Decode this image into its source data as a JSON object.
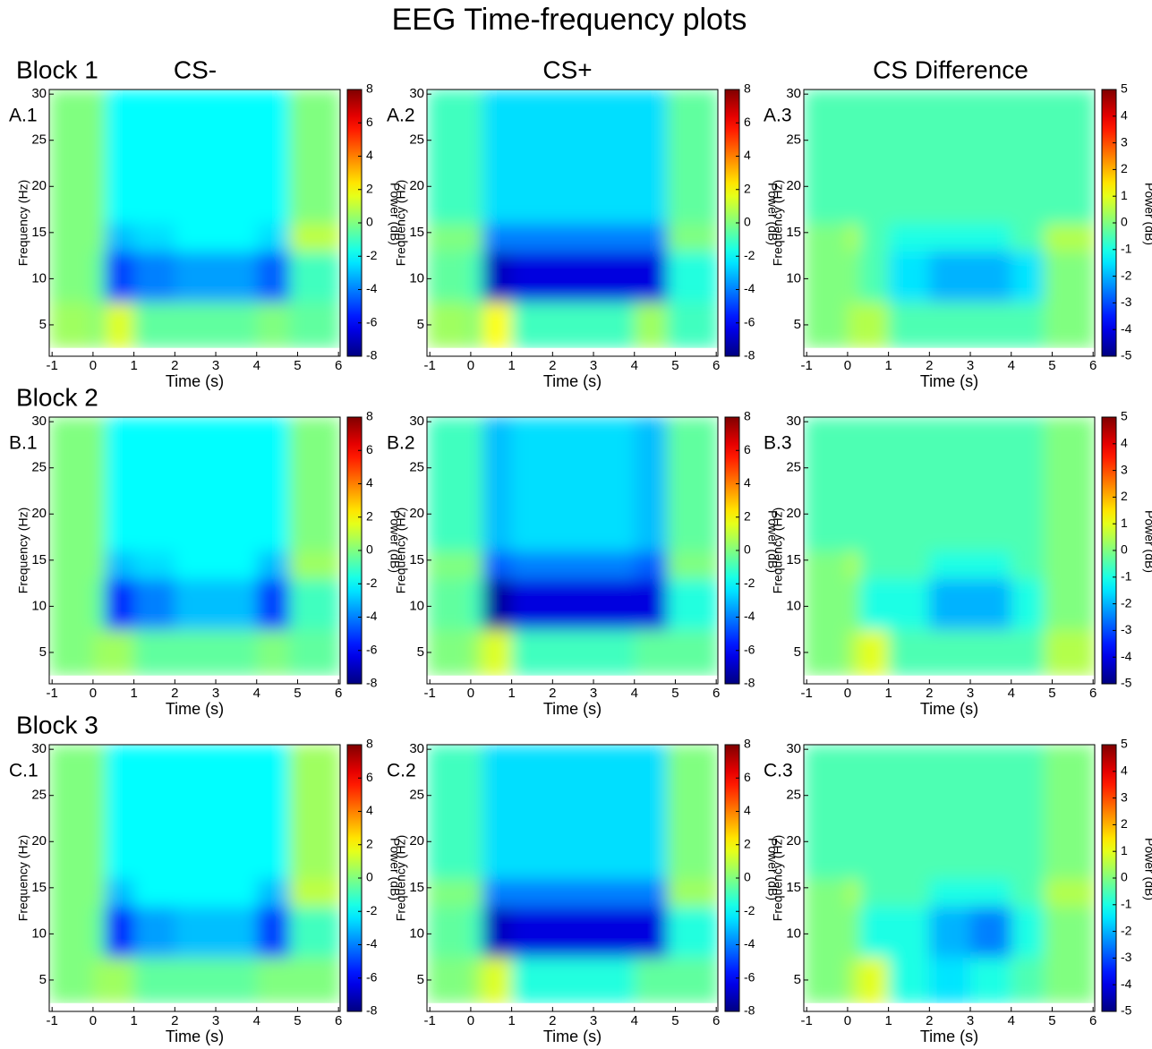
{
  "figure": {
    "title": "EEG Time-frequency plots",
    "row_titles": [
      "Block 1",
      "Block 2",
      "Block 3"
    ],
    "column_titles": [
      "CS-",
      "CS+",
      "CS Difference"
    ]
  },
  "chart_data": [
    {
      "type": "heatmap",
      "label": "A.1",
      "x_label": "Time (s)",
      "y_label": "Frequency (Hz)",
      "colorbar_label": "Power (dB)",
      "colormap": "jet",
      "xlim": [
        -1.07,
        6.04
      ],
      "xticks": [
        -1,
        0,
        1,
        2,
        3,
        4,
        5,
        6
      ],
      "ylim": [
        1.6,
        30.5
      ],
      "yticks": [
        5,
        10,
        15,
        20,
        25,
        30
      ],
      "clim": [
        -8,
        8
      ],
      "cticks": [
        -8,
        -6,
        -4,
        -2,
        0,
        2,
        4,
        6,
        8
      ],
      "x_edges": [
        -1.07,
        0,
        0.3,
        1,
        2,
        3,
        4,
        4.8,
        6.04
      ],
      "y_edges": [
        2.5,
        7.5,
        13,
        16,
        30.5
      ],
      "z": [
        [
          0.5,
          0,
          1.5,
          -0.5,
          -0.5,
          -0.5,
          0,
          -0.5
        ],
        [
          0,
          -0.5,
          -5,
          -4,
          -3.5,
          -3.5,
          -4.5,
          -1
        ],
        [
          0,
          0,
          -3,
          -2.5,
          -2,
          -2,
          -2.5,
          1
        ],
        [
          0,
          0,
          -2,
          -2,
          -2,
          -2,
          -2,
          0
        ]
      ]
    },
    {
      "type": "heatmap",
      "label": "A.2",
      "x_label": "Time (s)",
      "y_label": "Frequency (Hz)",
      "colorbar_label": "Power (dB)",
      "colormap": "jet",
      "xlim": [
        -1.07,
        6.04
      ],
      "xticks": [
        -1,
        0,
        1,
        2,
        3,
        4,
        5,
        6
      ],
      "ylim": [
        1.6,
        30.5
      ],
      "yticks": [
        5,
        10,
        15,
        20,
        25,
        30
      ],
      "clim": [
        -8,
        8
      ],
      "cticks": [
        -8,
        -6,
        -4,
        -2,
        0,
        2,
        4,
        6,
        8
      ],
      "x_edges": [
        -1.07,
        0,
        0.3,
        1,
        2,
        3,
        4,
        4.8,
        6.04
      ],
      "y_edges": [
        2.5,
        7.5,
        13,
        16,
        30.5
      ],
      "z": [
        [
          0.5,
          0,
          2,
          -1,
          -1,
          -1,
          0.5,
          -1
        ],
        [
          -0.5,
          -1,
          -7,
          -6.5,
          -6.5,
          -6.5,
          -6.5,
          -1.5
        ],
        [
          0,
          0,
          -4,
          -4,
          -4,
          -4,
          -4,
          0
        ],
        [
          -1,
          -1,
          -2.5,
          -2.5,
          -2.5,
          -2.5,
          -2.5,
          -0.5
        ]
      ]
    },
    {
      "type": "heatmap",
      "label": "A.3",
      "x_label": "Time (s)",
      "y_label": "Frequency (Hz)",
      "colorbar_label": "Power (dB)",
      "colormap": "jet",
      "xlim": [
        -1.07,
        6.04
      ],
      "xticks": [
        -1,
        0,
        1,
        2,
        3,
        4,
        5,
        6
      ],
      "ylim": [
        1.6,
        30.5
      ],
      "yticks": [
        5,
        10,
        15,
        20,
        25,
        30
      ],
      "clim": [
        -5,
        5
      ],
      "cticks": [
        -5,
        -4,
        -3,
        -2,
        -1,
        0,
        1,
        2,
        3,
        4,
        5
      ],
      "x_edges": [
        -1.07,
        0,
        0.3,
        1,
        2,
        3,
        4,
        4.8,
        6.04
      ],
      "y_edges": [
        2.5,
        7.5,
        13,
        16,
        30.5
      ],
      "z": [
        [
          0,
          0.5,
          0.5,
          -0.5,
          -0.5,
          -0.5,
          -0.5,
          0
        ],
        [
          0,
          0,
          -0.5,
          -1.5,
          -2,
          -2,
          -1.5,
          0
        ],
        [
          0,
          0.5,
          -0.5,
          -1,
          -1,
          -1,
          -0.5,
          0.5
        ],
        [
          -0.5,
          -0.5,
          -0.5,
          -0.5,
          -0.5,
          -0.5,
          -0.5,
          -0.5
        ]
      ]
    },
    {
      "type": "heatmap",
      "label": "B.1",
      "x_label": "Time (s)",
      "y_label": "Frequency (Hz)",
      "colorbar_label": "Power (dB)",
      "colormap": "jet",
      "xlim": [
        -1.07,
        6.04
      ],
      "xticks": [
        -1,
        0,
        1,
        2,
        3,
        4,
        5,
        6
      ],
      "ylim": [
        1.6,
        30.5
      ],
      "yticks": [
        5,
        10,
        15,
        20,
        25,
        30
      ],
      "clim": [
        -8,
        8
      ],
      "cticks": [
        -8,
        -6,
        -4,
        -2,
        0,
        2,
        4,
        6,
        8
      ],
      "x_edges": [
        -1.07,
        0,
        0.3,
        1,
        2,
        3,
        4,
        4.8,
        6.04
      ],
      "y_edges": [
        2.5,
        7.5,
        13,
        16,
        30.5
      ],
      "z": [
        [
          0,
          0.5,
          0.5,
          -0.5,
          -0.5,
          -0.5,
          0,
          -0.5
        ],
        [
          0,
          -0.5,
          -5.5,
          -4,
          -3,
          -3,
          -5,
          -1
        ],
        [
          0,
          0,
          -3,
          -2.5,
          -2,
          -2,
          -3,
          0.5
        ],
        [
          0,
          0,
          -2,
          -2,
          -2,
          -2,
          -2,
          0
        ]
      ]
    },
    {
      "type": "heatmap",
      "label": "B.2",
      "x_label": "Time (s)",
      "y_label": "Frequency (Hz)",
      "colorbar_label": "Power (dB)",
      "colormap": "jet",
      "xlim": [
        -1.07,
        6.04
      ],
      "xticks": [
        -1,
        0,
        1,
        2,
        3,
        4,
        5,
        6
      ],
      "ylim": [
        1.6,
        30.5
      ],
      "yticks": [
        5,
        10,
        15,
        20,
        25,
        30
      ],
      "clim": [
        -8,
        8
      ],
      "cticks": [
        -8,
        -6,
        -4,
        -2,
        0,
        2,
        4,
        6,
        8
      ],
      "x_edges": [
        -1.07,
        0,
        0.3,
        1,
        2,
        3,
        4,
        4.8,
        6.04
      ],
      "y_edges": [
        2.5,
        7.5,
        13,
        16,
        30.5
      ],
      "z": [
        [
          0,
          0.5,
          1.5,
          -1,
          -1,
          -1,
          -0.5,
          -0.5
        ],
        [
          -0.5,
          -1,
          -7.5,
          -6.5,
          -6.5,
          -6.5,
          -6.5,
          -1.5
        ],
        [
          0,
          0,
          -4.5,
          -4,
          -4,
          -4,
          -4.5,
          0
        ],
        [
          -1,
          -1,
          -3,
          -2.5,
          -2.5,
          -2.5,
          -3,
          -0.5
        ]
      ]
    },
    {
      "type": "heatmap",
      "label": "B.3",
      "x_label": "Time (s)",
      "y_label": "Frequency (Hz)",
      "colorbar_label": "Power (dB)",
      "colormap": "jet",
      "xlim": [
        -1.07,
        6.04
      ],
      "xticks": [
        -1,
        0,
        1,
        2,
        3,
        4,
        5,
        6
      ],
      "ylim": [
        1.6,
        30.5
      ],
      "yticks": [
        5,
        10,
        15,
        20,
        25,
        30
      ],
      "clim": [
        -5,
        5
      ],
      "cticks": [
        -5,
        -4,
        -3,
        -2,
        -1,
        0,
        1,
        2,
        3,
        4,
        5
      ],
      "x_edges": [
        -1.07,
        0,
        0.3,
        1,
        2,
        3,
        4,
        4.8,
        6.04
      ],
      "y_edges": [
        2.5,
        7.5,
        13,
        16,
        30.5
      ],
      "z": [
        [
          0,
          0.5,
          1,
          -0.5,
          -0.5,
          -0.5,
          -0.5,
          0.5
        ],
        [
          0,
          0,
          -1,
          -1,
          -2,
          -2,
          -1,
          0
        ],
        [
          0,
          0.5,
          -0.5,
          -0.5,
          -1,
          -1,
          -0.5,
          0
        ],
        [
          -0.5,
          -0.5,
          -0.5,
          -0.5,
          -0.5,
          -0.5,
          -0.5,
          0
        ]
      ]
    },
    {
      "type": "heatmap",
      "label": "C.1",
      "x_label": "Time (s)",
      "y_label": "Frequency (Hz)",
      "colorbar_label": "Power (dB)",
      "colormap": "jet",
      "xlim": [
        -1.07,
        6.04
      ],
      "xticks": [
        -1,
        0,
        1,
        2,
        3,
        4,
        5,
        6
      ],
      "ylim": [
        1.6,
        30.5
      ],
      "yticks": [
        5,
        10,
        15,
        20,
        25,
        30
      ],
      "clim": [
        -8,
        8
      ],
      "cticks": [
        -8,
        -6,
        -4,
        -2,
        0,
        2,
        4,
        6,
        8
      ],
      "x_edges": [
        -1.07,
        0,
        0.3,
        1,
        2,
        3,
        4,
        4.8,
        6.04
      ],
      "y_edges": [
        2.5,
        7.5,
        13,
        16,
        30.5
      ],
      "z": [
        [
          0,
          0.5,
          0.5,
          -0.5,
          -0.5,
          -0.5,
          0,
          0
        ],
        [
          0,
          -0.5,
          -5.5,
          -3.5,
          -3,
          -3,
          -5,
          -1
        ],
        [
          0,
          0,
          -3,
          -2,
          -2,
          -2,
          -3,
          1
        ],
        [
          0,
          0,
          -2,
          -2,
          -2,
          -2,
          -2,
          0.5
        ]
      ]
    },
    {
      "type": "heatmap",
      "label": "C.2",
      "x_label": "Time (s)",
      "y_label": "Frequency (Hz)",
      "colorbar_label": "Power (dB)",
      "colormap": "jet",
      "xlim": [
        -1.07,
        6.04
      ],
      "xticks": [
        -1,
        0,
        1,
        2,
        3,
        4,
        5,
        6
      ],
      "ylim": [
        1.6,
        30.5
      ],
      "yticks": [
        5,
        10,
        15,
        20,
        25,
        30
      ],
      "clim": [
        -8,
        8
      ],
      "cticks": [
        -8,
        -6,
        -4,
        -2,
        0,
        2,
        4,
        6,
        8
      ],
      "x_edges": [
        -1.07,
        0,
        0.3,
        1,
        2,
        3,
        4,
        4.8,
        6.04
      ],
      "y_edges": [
        2.5,
        7.5,
        13,
        16,
        30.5
      ],
      "z": [
        [
          0,
          0.5,
          1.5,
          -1.5,
          -1.5,
          -1.5,
          -0.5,
          -0.5
        ],
        [
          -0.5,
          -1,
          -7,
          -6.5,
          -6.5,
          -6.5,
          -6.5,
          -1.5
        ],
        [
          0,
          0,
          -4,
          -4,
          -4,
          -4,
          -4,
          0.5
        ],
        [
          -1,
          -1,
          -2.5,
          -2.5,
          -2.5,
          -2.5,
          -2.5,
          0
        ]
      ]
    },
    {
      "type": "heatmap",
      "label": "C.3",
      "x_label": "Time (s)",
      "y_label": "Frequency (Hz)",
      "colorbar_label": "Power (dB)",
      "colormap": "jet",
      "xlim": [
        -1.07,
        6.04
      ],
      "xticks": [
        -1,
        0,
        1,
        2,
        3,
        4,
        5,
        6
      ],
      "ylim": [
        1.6,
        30.5
      ],
      "yticks": [
        5,
        10,
        15,
        20,
        25,
        30
      ],
      "clim": [
        -5,
        5
      ],
      "cticks": [
        -5,
        -4,
        -3,
        -2,
        -1,
        0,
        1,
        2,
        3,
        4,
        5
      ],
      "x_edges": [
        -1.07,
        0,
        0.3,
        1,
        2,
        3,
        4,
        4.8,
        6.04
      ],
      "y_edges": [
        2.5,
        7.5,
        13,
        16,
        30.5
      ],
      "z": [
        [
          0,
          0.5,
          1,
          -1,
          -1.5,
          -1,
          -0.5,
          0
        ],
        [
          0,
          0,
          -1,
          -1,
          -2,
          -2.5,
          -1,
          0
        ],
        [
          0,
          0.5,
          -0.5,
          -0.5,
          -1,
          -1,
          -0.5,
          0.5
        ],
        [
          -0.5,
          -0.5,
          -0.5,
          -0.5,
          -0.5,
          -0.5,
          -0.5,
          0
        ]
      ]
    }
  ]
}
